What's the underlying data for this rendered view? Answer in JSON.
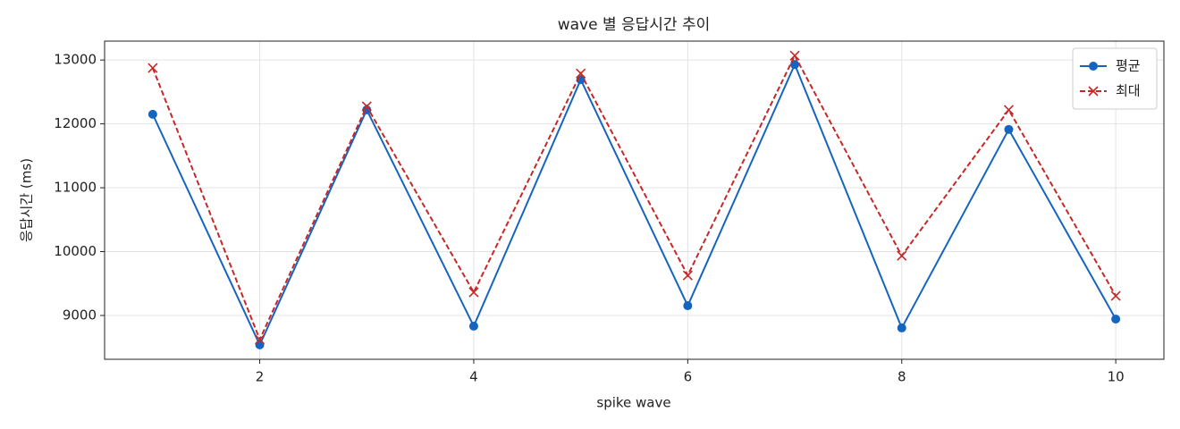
{
  "chart_data": {
    "type": "line",
    "title": "wave 별 응답시간 추이",
    "x_label": "spike wave",
    "y_label": "응답시간 (ms)",
    "x": [
      1,
      2,
      3,
      4,
      5,
      6,
      7,
      8,
      9,
      10
    ],
    "series": [
      {
        "name": "평균",
        "color": "#1565c0",
        "line_style": "solid",
        "marker": "circle",
        "values": [
          12150,
          8540,
          12220,
          8833,
          12693,
          9153,
          12930,
          8805,
          11913,
          8944
        ]
      },
      {
        "name": "최대",
        "color": "#c62828",
        "line_style": "dashed",
        "marker": "x",
        "values": [
          12875,
          8624,
          12275,
          9362,
          12790,
          9627,
          13070,
          9934,
          12220,
          9307
        ]
      }
    ],
    "xlim": [
      0.55,
      10.45
    ],
    "xticks": [
      2,
      4,
      6,
      8,
      10
    ],
    "ylim": [
      8314,
      13296
    ],
    "yticks": [
      9000,
      10000,
      11000,
      12000,
      13000
    ],
    "grid": true,
    "legend": "upper right"
  }
}
